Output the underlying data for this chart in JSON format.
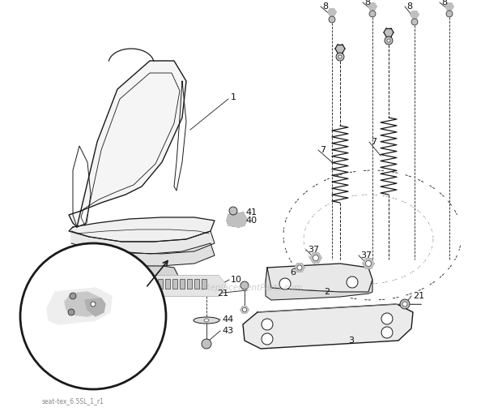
{
  "bg_color": "#ffffff",
  "line_color": "#1a1a1a",
  "watermark": "eReplacementParts.com",
  "footer_text": "seat-tex_6.5SL_1_r1",
  "gray_fill": "#d8d8d8",
  "light_gray": "#eeeeee",
  "med_gray": "#c0c0c0"
}
